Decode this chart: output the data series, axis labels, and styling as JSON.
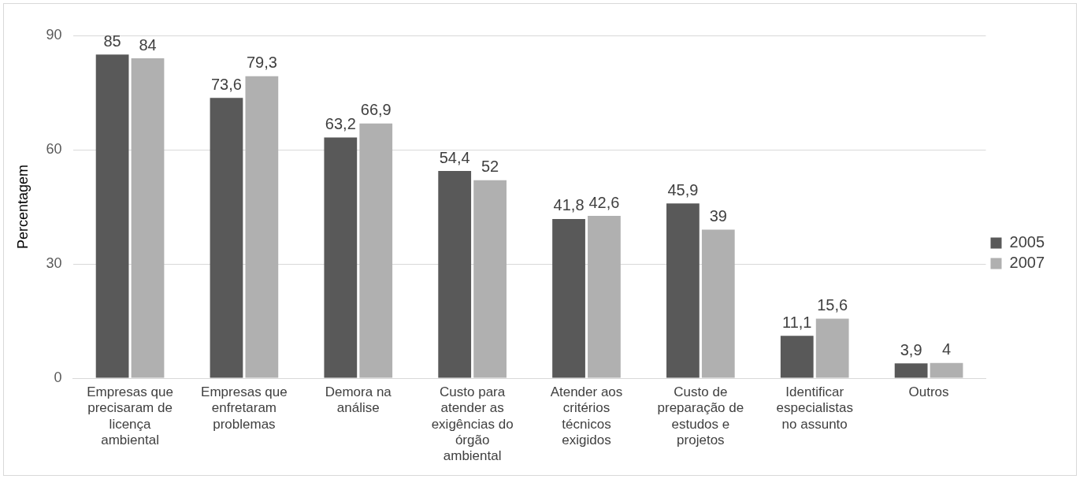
{
  "chart_data": {
    "type": "bar",
    "ylabel": "Percentagem",
    "categories": [
      "Empresas que precisaram de licença ambiental",
      "Empresas que enfretaram problemas",
      "Demora na análise",
      "Custo para atender as exigências do órgão ambiental",
      "Atender aos critérios técnicos exigidos",
      "Custo de preparação de estudos e projetos",
      "Identificar especialistas no assunto",
      "Outros"
    ],
    "series": [
      {
        "name": "2005",
        "color": "#595959",
        "values": [
          85,
          73.6,
          63.2,
          54.4,
          41.8,
          45.9,
          11.1,
          3.9
        ],
        "value_labels": [
          "85",
          "73,6",
          "63,2",
          "54,4",
          "41,8",
          "45,9",
          "11,1",
          "3,9"
        ]
      },
      {
        "name": "2007",
        "color": "#b0b0b0",
        "values": [
          84,
          79.3,
          66.9,
          52,
          42.6,
          39,
          15.6,
          4
        ],
        "value_labels": [
          "84",
          "79,3",
          "66,9",
          "52",
          "42,6",
          "39",
          "15,6",
          "4"
        ]
      }
    ],
    "ylim": [
      0,
      90
    ],
    "yticks": [
      0,
      30,
      60,
      90
    ],
    "grid": "y",
    "legend": "right"
  }
}
